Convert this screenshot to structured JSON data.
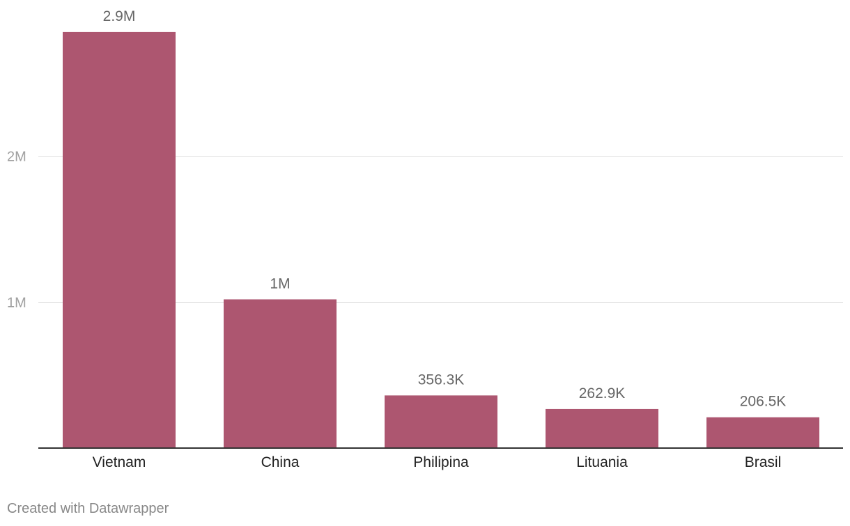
{
  "chart_data": {
    "type": "bar",
    "categories": [
      "Vietnam",
      "China",
      "Philipina",
      "Lituania",
      "Brasil"
    ],
    "values": [
      2850000,
      1015000,
      356300,
      262900,
      206500
    ],
    "value_labels": [
      "2.9M",
      "1M",
      "356.3K",
      "262.9K",
      "206.5K"
    ],
    "y_ticks": [
      {
        "value": 1000000,
        "label": "1M"
      },
      {
        "value": 2000000,
        "label": "2M"
      }
    ],
    "ylim": [
      0,
      2950000
    ],
    "grid": true,
    "bar_color": "#ad5670",
    "grid_color": "#e0e0e0",
    "axis_color": "#333333",
    "tick_label_color": "#a0a0a0",
    "value_label_color": "#666666",
    "category_label_color": "#222222"
  },
  "footer": {
    "credit": "Created with Datawrapper"
  }
}
